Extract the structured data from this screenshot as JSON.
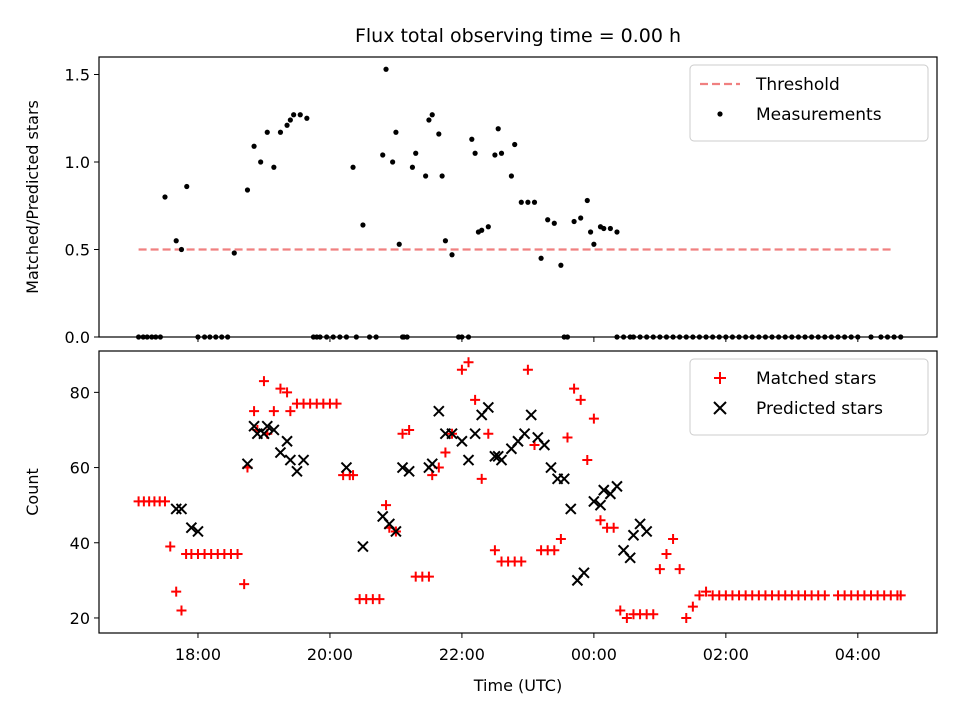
{
  "chart_data": [
    {
      "type": "scatter",
      "title": "Flux total observing time = 0.00 h",
      "xlabel": "",
      "ylabel": "Matched/Predicted stars",
      "xlim": [
        -1.5,
        11.2
      ],
      "ylim": [
        0,
        1.6
      ],
      "yticks": [
        0,
        0.5,
        1.0,
        1.5
      ],
      "ytick_labels": [
        "0.0",
        "0.5",
        "1.0",
        "1.5"
      ],
      "xticks": [
        0,
        2,
        4,
        6,
        8,
        10
      ],
      "grid": false,
      "legend": "top-right",
      "threshold": {
        "name": "Threshold",
        "y": 0.5,
        "x_start": -0.9,
        "x_end": 10.55,
        "color": "#f08080"
      },
      "series": [
        {
          "name": "Measurements",
          "color": "#000000",
          "x": [
            -0.9,
            -0.83,
            -0.77,
            -0.7,
            -0.64,
            -0.57,
            -0.5,
            -0.33,
            -0.25,
            -0.17,
            0,
            0.1,
            0.18,
            0.27,
            0.36,
            0.45,
            0.55,
            0.75,
            0.85,
            0.95,
            1.05,
            1.15,
            1.25,
            1.35,
            1.4,
            1.45,
            1.55,
            1.65,
            1.75,
            1.85,
            1.95,
            2.05,
            2.15,
            2.25,
            2.35,
            2.4,
            2.5,
            2.6,
            2.7,
            2.8,
            2.85,
            2.95,
            3,
            3.05,
            3.12,
            3.17,
            3.25,
            3.3,
            3.45,
            3.5,
            3.55,
            3.65,
            3.7,
            3.75,
            3.85,
            3.95,
            4,
            4.1,
            4.15,
            4.2,
            4.25,
            4.3,
            4.4,
            4.5,
            4.55,
            4.6,
            4.75,
            4.8,
            4.9,
            5.0,
            5.1,
            5.2,
            5.3,
            5.4,
            5.5,
            5.55,
            5.6,
            5.7,
            5.8,
            5.9,
            5.95,
            6,
            6.1,
            6.15,
            6.25,
            6.35,
            6.45,
            6.55,
            6.6,
            6.7,
            6.8,
            6.9,
            7,
            7.1,
            7.2,
            7.3,
            7.4,
            7.5,
            7.6,
            7.7,
            7.8,
            7.9,
            8,
            8.1,
            8.2,
            8.3,
            8.4,
            8.5,
            8.6,
            8.7,
            8.8,
            8.9,
            9,
            9.1,
            9.2,
            9.3,
            9.4,
            9.5,
            9.6,
            9.7,
            9.8,
            9.9,
            10.0,
            10.2,
            10.35,
            10.45,
            10.55,
            10.65,
            1.8,
            3.1,
            6.35
          ],
          "y": [
            0,
            0,
            0,
            0,
            0,
            0,
            0.8,
            0.55,
            0.5,
            0.86,
            0,
            0,
            0,
            0,
            0,
            0,
            0.48,
            0.84,
            1.09,
            1.0,
            1.17,
            0.97,
            1.17,
            1.21,
            1.24,
            1.27,
            1.27,
            1.25,
            0,
            0,
            0,
            0,
            0,
            0,
            0.97,
            0,
            0.64,
            0,
            0,
            1.04,
            1.53,
            1.0,
            1.17,
            0.53,
            0,
            0,
            0.97,
            1.05,
            0.92,
            1.24,
            1.27,
            1.16,
            0.92,
            0.55,
            0.47,
            0,
            0,
            0,
            1.13,
            1.05,
            0.6,
            0.61,
            0.63,
            1.04,
            1.19,
            1.05,
            0.92,
            1.1,
            0.77,
            0.77,
            0.77,
            0.45,
            0.67,
            0.65,
            0.41,
            0,
            0,
            0.66,
            0.68,
            0.78,
            0.6,
            0.53,
            0.63,
            0.62,
            0.62,
            0.6,
            0,
            0,
            0,
            0,
            0,
            0,
            0,
            0,
            0,
            0,
            0,
            0,
            0,
            0,
            0,
            0,
            0,
            0,
            0,
            0,
            0,
            0,
            0,
            0,
            0,
            0,
            0,
            0,
            0,
            0,
            0,
            0,
            0,
            0,
            0,
            0,
            0,
            0,
            0,
            0,
            0,
            0,
            0,
            0,
            0
          ]
        }
      ]
    },
    {
      "type": "scatter",
      "title": "",
      "xlabel": "Time (UTC)",
      "ylabel": "Count",
      "xlim": [
        -1.5,
        11.2
      ],
      "ylim": [
        16,
        91
      ],
      "yticks": [
        20,
        40,
        60,
        80
      ],
      "ytick_labels": [
        "20",
        "40",
        "60",
        "80"
      ],
      "xticks": [
        0,
        2,
        4,
        6,
        8,
        10
      ],
      "xtick_labels": [
        "18:00",
        "20:00",
        "22:00",
        "00:00",
        "02:00",
        "04:00"
      ],
      "grid": false,
      "legend": "top-right",
      "series": [
        {
          "name": "Matched stars",
          "color": "#ff0000",
          "marker": "plus",
          "x": [
            -0.9,
            -0.82,
            -0.74,
            -0.66,
            -0.58,
            -0.5,
            -0.42,
            -0.33,
            -0.25,
            -0.18,
            -0.1,
            0,
            0.1,
            0.2,
            0.3,
            0.4,
            0.5,
            0.6,
            0.7,
            0.75,
            0.85,
            0.9,
            1.0,
            1.05,
            1.15,
            1.25,
            1.35,
            1.4,
            1.5,
            1.6,
            1.7,
            1.8,
            1.9,
            2.0,
            2.1,
            2.2,
            2.3,
            2.35,
            2.45,
            2.55,
            2.65,
            2.75,
            2.85,
            2.9,
            3.0,
            3.1,
            3.2,
            3.3,
            3.4,
            3.5,
            3.55,
            3.65,
            3.75,
            3.85,
            4.0,
            4.1,
            4.2,
            4.3,
            4.4,
            4.5,
            4.6,
            4.7,
            4.8,
            4.9,
            5.0,
            5.1,
            5.2,
            5.3,
            5.4,
            5.5,
            5.6,
            5.7,
            5.8,
            5.9,
            6.0,
            6.1,
            6.2,
            6.3,
            6.4,
            6.5,
            6.6,
            6.7,
            6.8,
            6.9,
            7.0,
            7.1,
            7.2,
            7.3,
            7.4,
            7.5,
            7.6,
            7.7,
            7.8,
            7.9,
            8.0,
            8.1,
            8.2,
            8.3,
            8.4,
            8.5,
            8.6,
            8.7,
            8.8,
            8.9,
            9.0,
            9.1,
            9.2,
            9.3,
            9.4,
            9.5,
            9.7,
            9.8,
            9.9,
            10.0,
            10.1,
            10.2,
            10.3,
            10.4,
            10.5,
            10.6,
            10.65
          ],
          "y": [
            51,
            51,
            51,
            51,
            51,
            51,
            39,
            27,
            22,
            37,
            37,
            37,
            37,
            37,
            37,
            37,
            37,
            37,
            29,
            60,
            75,
            70,
            83,
            69,
            75,
            81,
            80,
            75,
            77,
            77,
            77,
            77,
            77,
            77,
            77,
            58,
            58,
            58,
            25,
            25,
            25,
            25,
            50,
            44,
            43,
            69,
            70,
            31,
            31,
            31,
            58,
            60,
            64,
            69,
            86,
            88,
            78,
            57,
            69,
            38,
            35,
            35,
            35,
            35,
            86,
            66,
            38,
            38,
            38,
            41,
            68,
            81,
            78,
            62,
            73,
            46,
            44,
            44,
            22,
            20,
            21,
            21,
            21,
            21,
            33,
            37,
            41,
            33,
            20,
            23,
            26,
            27,
            26,
            26,
            26,
            26,
            26,
            26,
            26,
            26,
            26,
            26,
            26,
            26,
            26,
            26,
            26,
            26,
            26,
            26,
            26,
            26,
            26,
            26,
            26,
            26,
            26,
            26,
            26,
            26,
            26
          ]
        },
        {
          "name": "Predicted stars",
          "color": "#000000",
          "marker": "x",
          "x": [
            -0.33,
            -0.25,
            -0.1,
            0.0,
            0.75,
            0.85,
            0.9,
            1.0,
            1.05,
            1.15,
            1.25,
            1.35,
            1.4,
            1.5,
            1.6,
            2.25,
            2.5,
            2.8,
            2.9,
            3.0,
            3.1,
            3.2,
            3.5,
            3.55,
            3.65,
            3.75,
            3.85,
            4.0,
            4.1,
            4.2,
            4.3,
            4.4,
            4.5,
            4.55,
            4.6,
            4.75,
            4.85,
            4.95,
            5.05,
            5.15,
            5.25,
            5.35,
            5.45,
            5.55,
            5.65,
            5.75,
            5.85,
            6.0,
            6.1,
            6.15,
            6.25,
            6.35,
            6.45,
            6.55,
            6.6,
            6.7,
            6.8
          ],
          "y": [
            49,
            49,
            44,
            43,
            61,
            71,
            69,
            69,
            71,
            70,
            64,
            67,
            62,
            59,
            62,
            60,
            39,
            47,
            45,
            43,
            60,
            59,
            60,
            61,
            75,
            69,
            69,
            67,
            62,
            69,
            74,
            76,
            63,
            63,
            62,
            65,
            67,
            69,
            74,
            68,
            66,
            60,
            57,
            57,
            49,
            30,
            32,
            51,
            50,
            54,
            53,
            55,
            38,
            36,
            42,
            45,
            43
          ]
        }
      ]
    }
  ]
}
